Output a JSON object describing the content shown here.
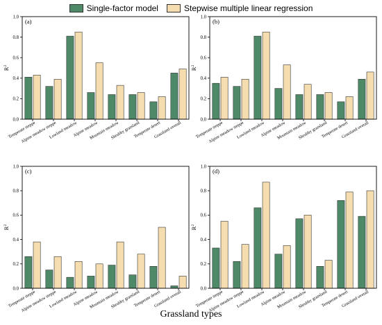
{
  "legend": {
    "series1_label": "Single-factor model",
    "series2_label": "Stepwise multiple linear regression"
  },
  "colors": {
    "series1": "#4f8a68",
    "series2": "#f6ddb0"
  },
  "x_axis_title": "Grassland types",
  "chart_data": [
    {
      "type": "bar",
      "panel_label": "(a)",
      "ylabel": "R2",
      "ylim": [
        0.0,
        1.0
      ],
      "yticks": [
        "0.0",
        "0.2",
        "0.4",
        "0.6",
        "0.8",
        "1.0"
      ],
      "categories": [
        "Temperate steppe",
        "Alpine meadow steppe",
        "Lowland meadow",
        "Alpine meadow",
        "Mountain meadow",
        "Shrubby grassland",
        "Temperate desert",
        "Grassland overall"
      ],
      "series": [
        {
          "name": "Single-factor model",
          "values": [
            0.41,
            0.32,
            0.81,
            0.26,
            0.24,
            0.24,
            0.17,
            0.45
          ]
        },
        {
          "name": "Stepwise multiple linear regression",
          "values": [
            0.43,
            0.39,
            0.85,
            0.55,
            0.33,
            0.26,
            0.22,
            0.49
          ]
        }
      ]
    },
    {
      "type": "bar",
      "panel_label": "(b)",
      "ylabel": "R2",
      "ylim": [
        0.0,
        1.0
      ],
      "yticks": [
        "0.0",
        "0.2",
        "0.4",
        "0.6",
        "0.8",
        "1.0"
      ],
      "categories": [
        "Temperate steppe",
        "Alpine meadow steppe",
        "Lowland meadow",
        "Alpine meadow",
        "Mountain meadow",
        "Shrubby grassland",
        "Temperate desert",
        "Grassland overall"
      ],
      "series": [
        {
          "name": "Single-factor model",
          "values": [
            0.35,
            0.32,
            0.81,
            0.3,
            0.24,
            0.24,
            0.17,
            0.39
          ]
        },
        {
          "name": "Stepwise multiple linear regression",
          "values": [
            0.41,
            0.39,
            0.85,
            0.53,
            0.34,
            0.26,
            0.22,
            0.46
          ]
        }
      ]
    },
    {
      "type": "bar",
      "panel_label": "(c)",
      "ylabel": "R2",
      "ylim": [
        0.0,
        1.0
      ],
      "yticks": [
        "0.0",
        "0.2",
        "0.4",
        "0.6",
        "0.8",
        "1.0"
      ],
      "categories": [
        "Temperate steppe",
        "Alpine meadow steppe",
        "Lowland meadow",
        "Alpine meadow",
        "Mountain meadow",
        "Shrubby grassland",
        "Temperate desert",
        "Grassland overall"
      ],
      "series": [
        {
          "name": "Single-factor model",
          "values": [
            0.26,
            0.15,
            0.09,
            0.1,
            0.19,
            0.11,
            0.18,
            0.02
          ]
        },
        {
          "name": "Stepwise multiple linear regression",
          "values": [
            0.38,
            0.26,
            0.22,
            0.2,
            0.38,
            0.28,
            0.5,
            0.1
          ]
        }
      ]
    },
    {
      "type": "bar",
      "panel_label": "(d)",
      "ylabel": "R2",
      "ylim": [
        0.0,
        1.0
      ],
      "yticks": [
        "0.0",
        "0.2",
        "0.4",
        "0.6",
        "0.8",
        "1.0"
      ],
      "categories": [
        "Temperate steppe",
        "Alpine meadow steppe",
        "Lowland meadow",
        "Alpine meadow",
        "Mountain meadow",
        "Shrubby grassland",
        "Temperate desert",
        "Grassland overall"
      ],
      "series": [
        {
          "name": "Single-factor model",
          "values": [
            0.33,
            0.22,
            0.66,
            0.28,
            0.57,
            0.18,
            0.72,
            0.59
          ]
        },
        {
          "name": "Stepwise multiple linear regression",
          "values": [
            0.55,
            0.36,
            0.87,
            0.35,
            0.6,
            0.23,
            0.79,
            0.8
          ]
        }
      ]
    }
  ]
}
